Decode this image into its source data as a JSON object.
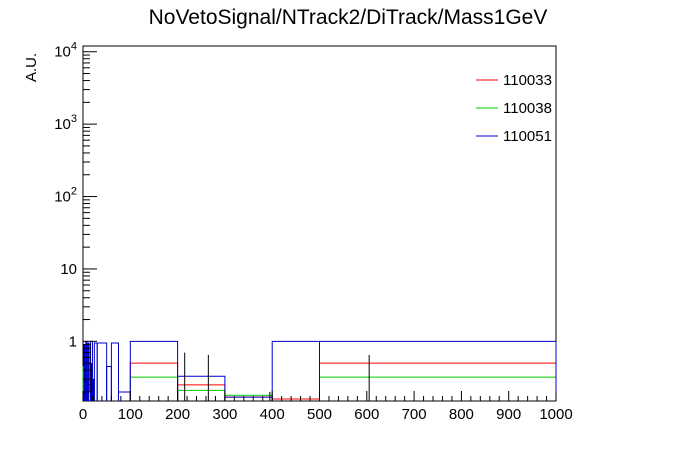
{
  "chart_data": {
    "type": "histogram",
    "title": "NoVetoSignal/NTrack2/DiTrack/Mass1GeV",
    "xlabel": "",
    "ylabel": "A.U.",
    "log_y": true,
    "xlim": [
      0,
      1000
    ],
    "ylim": [
      0.15,
      12000
    ],
    "x_ticks": [
      0,
      100,
      200,
      300,
      400,
      500,
      600,
      700,
      800,
      900,
      1000
    ],
    "y_ticks": [
      {
        "value": 1,
        "base": "1",
        "exp": ""
      },
      {
        "value": 10,
        "base": "10",
        "exp": ""
      },
      {
        "value": 100,
        "base": "10",
        "exp": "2"
      },
      {
        "value": 1000,
        "base": "10",
        "exp": "3"
      },
      {
        "value": 10000,
        "base": "10",
        "exp": "4"
      }
    ],
    "legend_position": "top-right",
    "grid": false,
    "series": [
      {
        "name": "110033",
        "color": "#ff0000",
        "bins": [
          {
            "x0": 0,
            "x1": 5,
            "y": 0.3
          },
          {
            "x0": 5,
            "x1": 10,
            "y": 0.8
          },
          {
            "x0": 10,
            "x1": 20,
            "y": 0.25
          },
          {
            "x0": 100,
            "x1": 200,
            "y": 0.5
          },
          {
            "x0": 200,
            "x1": 300,
            "y": 0.25
          },
          {
            "x0": 300,
            "x1": 400,
            "y": 0.17
          },
          {
            "x0": 400,
            "x1": 500,
            "y": 0.16
          },
          {
            "x0": 500,
            "x1": 1000,
            "y": 0.5
          }
        ]
      },
      {
        "name": "110038",
        "color": "#00cc00",
        "bins": [
          {
            "x0": 0,
            "x1": 10,
            "y": 0.45
          },
          {
            "x0": 100,
            "x1": 200,
            "y": 0.32
          },
          {
            "x0": 200,
            "x1": 300,
            "y": 0.21
          },
          {
            "x0": 300,
            "x1": 400,
            "y": 0.18
          },
          {
            "x0": 500,
            "x1": 1000,
            "y": 0.32
          }
        ]
      },
      {
        "name": "110051",
        "color": "#0000cc",
        "bins": [
          {
            "x0": 0,
            "x1": 2,
            "y": 0.2
          },
          {
            "x0": 2,
            "x1": 4,
            "y": 0.9
          },
          {
            "x0": 4,
            "x1": 6,
            "y": 0.4
          },
          {
            "x0": 6,
            "x1": 8,
            "y": 1.0
          },
          {
            "x0": 8,
            "x1": 10,
            "y": 0.3
          },
          {
            "x0": 10,
            "x1": 12,
            "y": 0.95
          },
          {
            "x0": 12,
            "x1": 16,
            "y": 0.5
          },
          {
            "x0": 16,
            "x1": 20,
            "y": 1.0
          },
          {
            "x0": 20,
            "x1": 24,
            "y": 0.3
          },
          {
            "x0": 24,
            "x1": 30,
            "y": 0.95
          },
          {
            "x0": 30,
            "x1": 50,
            "y": 0.95
          },
          {
            "x0": 50,
            "x1": 60,
            "y": 0.45
          },
          {
            "x0": 60,
            "x1": 75,
            "y": 0.95
          },
          {
            "x0": 75,
            "x1": 100,
            "y": 0.2
          },
          {
            "x0": 100,
            "x1": 200,
            "y": 1.0
          },
          {
            "x0": 200,
            "x1": 300,
            "y": 0.33
          },
          {
            "x0": 300,
            "x1": 400,
            "y": 0.17
          },
          {
            "x0": 400,
            "x1": 500,
            "y": 1.0
          },
          {
            "x0": 500,
            "x1": 1000,
            "y": 1.0
          }
        ]
      }
    ],
    "error_bars": [
      {
        "x": 15,
        "y": 0.7,
        "ylow": 0.2,
        "yhigh": 0.95
      },
      {
        "x": 18,
        "y": 0.25,
        "ylow": 0.15,
        "yhigh": 0.5
      },
      {
        "x": 22,
        "y": 0.2,
        "ylow": 0.15,
        "yhigh": 0.3
      },
      {
        "x": 215,
        "y": 0.3,
        "ylow": 0.15,
        "yhigh": 0.7
      },
      {
        "x": 265,
        "y": 0.25,
        "ylow": 0.15,
        "yhigh": 0.65
      },
      {
        "x": 395,
        "y": 0.17,
        "ylow": 0.15,
        "yhigh": 0.2
      },
      {
        "x": 605,
        "y": 0.3,
        "ylow": 0.15,
        "yhigh": 0.65
      }
    ]
  }
}
